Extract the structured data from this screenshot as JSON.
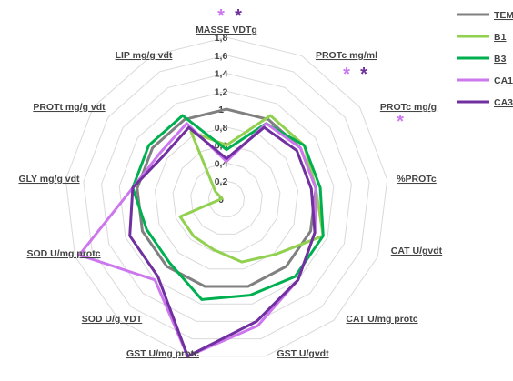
{
  "chart_data": {
    "type": "radar",
    "axes": [
      "MASSE VDTg",
      "PROTc mg/ml",
      "PROTc mg/g",
      "%PROTc",
      "CAT U/gvdt",
      "CAT U/mg protc",
      "GST U/gvdt",
      "GST U/mg protc",
      "SOD U/g VDT",
      "SOD U/mg protc",
      "GLY mg/g vdt",
      "PROTt mg/g vdt",
      "LIP mg/g vdt"
    ],
    "ticks": [
      "0",
      "0,2",
      "0,4",
      "0,6",
      "0,8",
      "1",
      "1,2",
      "1,4",
      "1,6",
      "1,8"
    ],
    "rmax": 1.8,
    "series": [
      {
        "name": "TEM",
        "color": "#808080",
        "values": [
          1.0,
          1.0,
          1.0,
          1.0,
          1.0,
          1.0,
          1.0,
          1.0,
          1.0,
          1.0,
          1.0,
          1.0,
          1.0
        ]
      },
      {
        "name": "B1",
        "color": "#92d050",
        "values": [
          0.6,
          1.05,
          1.05,
          1.0,
          1.15,
          0.82,
          0.72,
          0.58,
          0.55,
          0.55,
          0.05,
          0.15,
          0.85
        ]
      },
      {
        "name": "B3",
        "color": "#00b050",
        "values": [
          0.55,
          0.95,
          1.05,
          1.05,
          1.15,
          1.15,
          1.1,
          1.15,
          0.95,
          0.95,
          1.05,
          1.05,
          1.05
        ]
      },
      {
        "name": "CA1",
        "color": "#cc77ee",
        "values": [
          0.42,
          0.95,
          1.0,
          1.0,
          1.05,
          1.2,
          1.45,
          1.8,
          1.2,
          1.75,
          1.05,
          0.9,
          0.95
        ]
      },
      {
        "name": "CA3",
        "color": "#7030a0",
        "values": [
          0.45,
          0.9,
          0.95,
          0.95,
          1.05,
          1.2,
          1.4,
          1.8,
          1.15,
          1.15,
          1.05,
          0.85,
          0.9
        ]
      }
    ],
    "annotations": [
      {
        "text": "*",
        "axis": "MASSE VDTg",
        "colors": [
          "#cc77ee",
          "#7030a0"
        ]
      },
      {
        "text": "*",
        "axis": "PROTc mg/ml",
        "colors": [
          "#cc77ee",
          "#7030a0"
        ]
      },
      {
        "text": "*",
        "axis": "PROTc mg/g",
        "colors": [
          "#cc77ee"
        ]
      }
    ],
    "grid": true,
    "legend": "top-right"
  }
}
